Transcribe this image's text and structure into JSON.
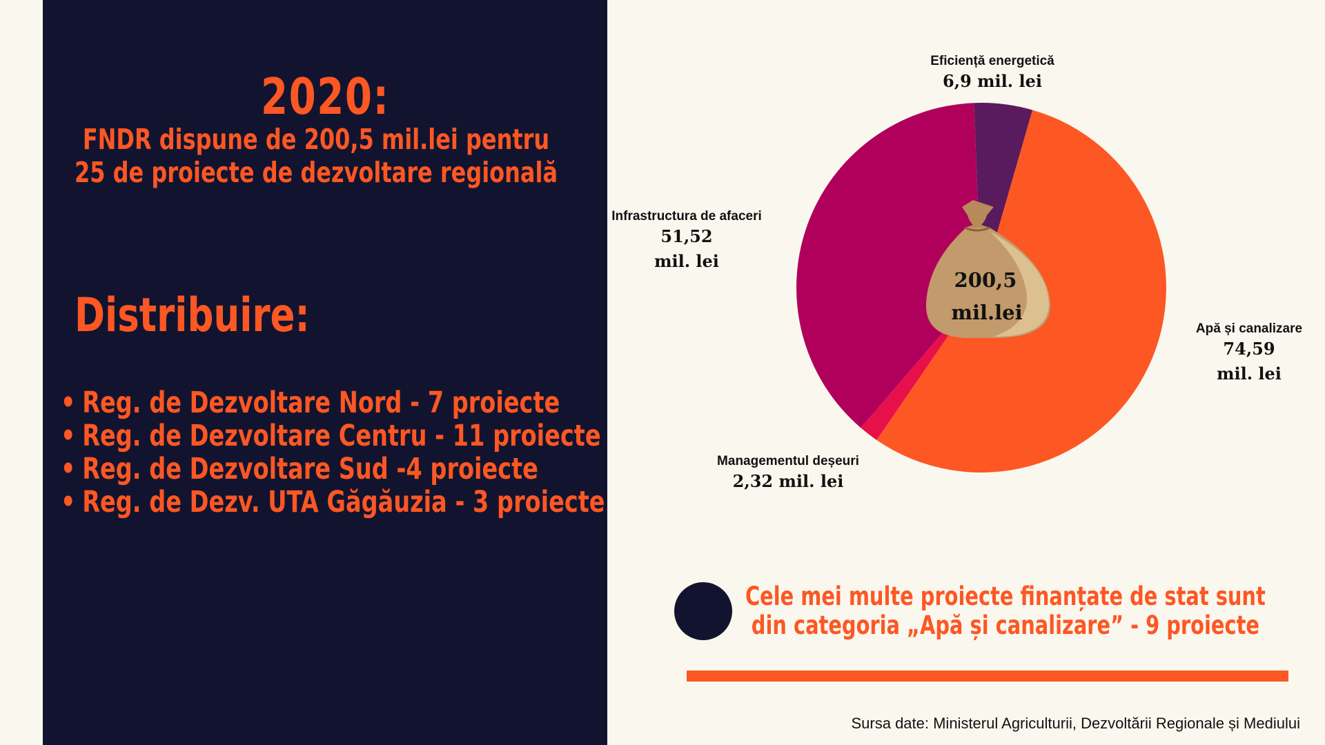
{
  "header": {
    "year": "2020:",
    "subtitle_line1": "FNDR dispune de 200,5 mil.lei pentru",
    "subtitle_line2": "25 de proiecte de dezvoltare regională"
  },
  "distribution": {
    "title": "Distribuire:",
    "items": [
      "Reg. de Dezvoltare Nord - 7 proiecte",
      "Reg. de Dezvoltare Centru - 11 proiecte",
      "Reg. de Dezvoltare Sud -4 proiecte",
      "Reg. de Dezv. UTA Găgăuzia - 3 proiecte"
    ]
  },
  "chart_data": {
    "type": "pie",
    "center_label_line1": "200,5",
    "center_label_line2": "mil.lei",
    "slices": [
      {
        "name": "Eficiență energetică",
        "value": 6.9,
        "value_label": "6,9 mil. lei",
        "color": "#5a1a5e"
      },
      {
        "name": "Apă și canalizare",
        "value": 74.59,
        "value_label_line1": "74,59",
        "value_label_line2": "mil. lei",
        "color": "#fd5723"
      },
      {
        "name": "Managementul deșeuri",
        "value": 2.32,
        "value_label": "2,32 mil. lei",
        "color": "#e8104a"
      },
      {
        "name": "Infrastructura de afaceri",
        "value": 51.52,
        "value_label_line1": "51,52",
        "value_label_line2": "mil. lei",
        "color": "#b0005c"
      }
    ],
    "bag_color": "#c29a6b"
  },
  "note": {
    "line1": "Cele mei multe proiecte finanțate de stat sunt",
    "line2": "din categoria „Apă și canalizare” - 9 proiecte"
  },
  "source": "Sursa date: Ministerul Agriculturii,  Dezvoltării Regionale și Mediului"
}
